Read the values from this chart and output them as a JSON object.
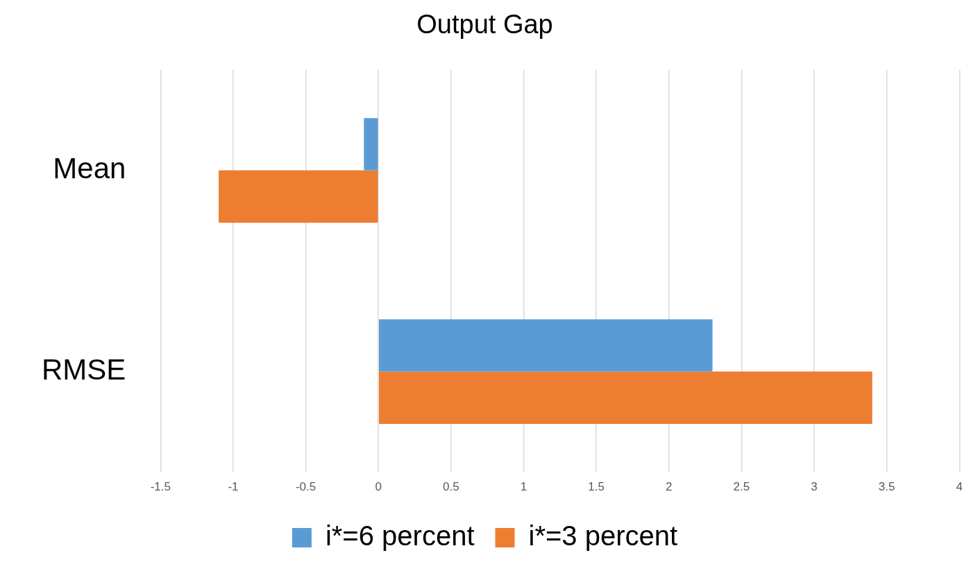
{
  "chart_data": {
    "type": "bar",
    "orientation": "horizontal",
    "title": "Output Gap",
    "categories": [
      "Mean",
      "RMSE"
    ],
    "series": [
      {
        "name": "i*=6 percent",
        "color": "#5b9bd5",
        "values": [
          -0.1,
          2.3
        ]
      },
      {
        "name": "i*=3 percent",
        "color": "#ed7d31",
        "values": [
          -1.1,
          3.4
        ]
      }
    ],
    "xlim": [
      -1.5,
      4
    ],
    "xticks": [
      -1.5,
      -1,
      -0.5,
      0,
      0.5,
      1,
      1.5,
      2,
      2.5,
      3,
      3.5,
      4
    ],
    "grid": "x",
    "legend": "bottom"
  }
}
